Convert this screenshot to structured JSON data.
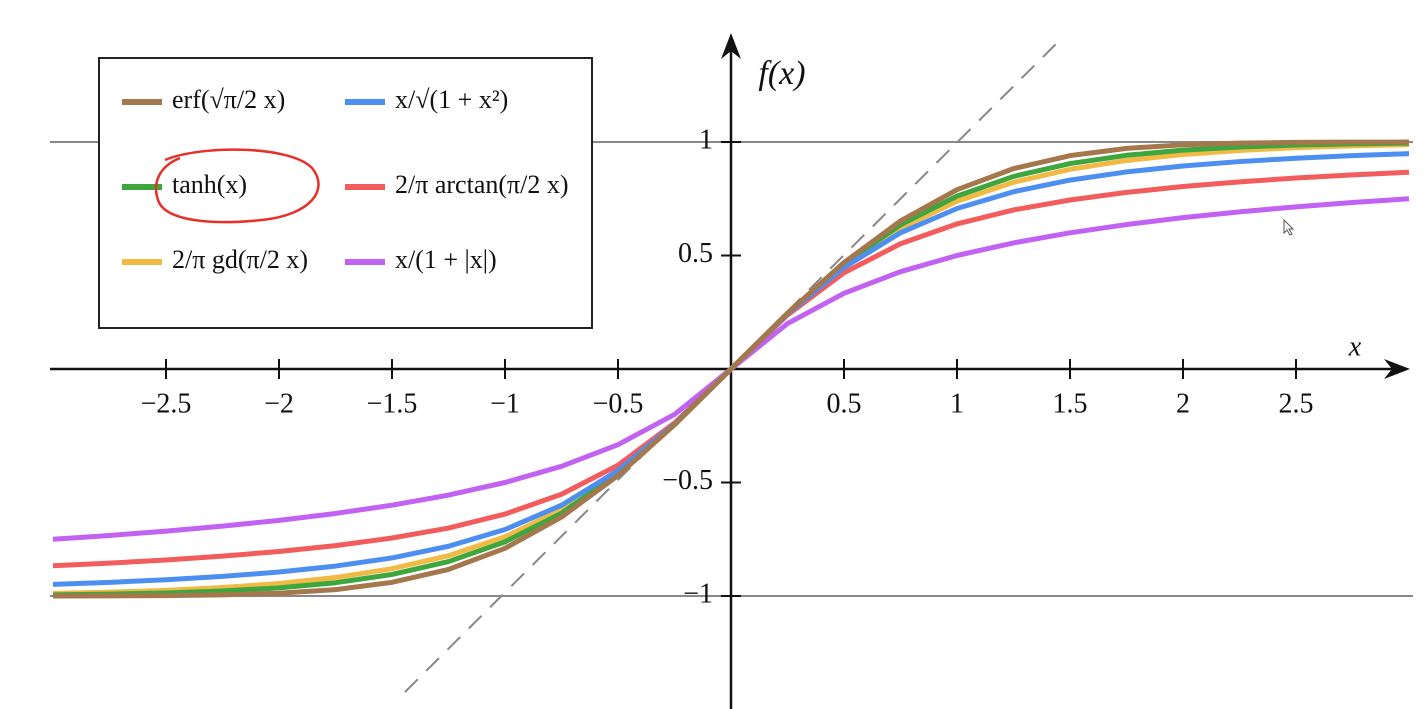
{
  "chart_data": {
    "type": "line",
    "x_label": "x",
    "y_label": "f(x)",
    "x": [
      -3,
      -2.75,
      -2.5,
      -2.25,
      -2,
      -1.75,
      -1.5,
      -1.25,
      -1,
      -0.75,
      -0.5,
      -0.25,
      0,
      0.25,
      0.5,
      0.75,
      1,
      1.25,
      1.5,
      1.75,
      2,
      2.25,
      2.5,
      2.75,
      3
    ],
    "series": [
      {
        "name": "erf(√π/2 x)",
        "color": "#a5774c",
        "values": [
          -0.9998,
          -0.9993,
          -0.9981,
          -0.9949,
          -0.9876,
          -0.9718,
          -0.9399,
          -0.8828,
          -0.79,
          -0.6522,
          -0.469,
          -0.2459,
          0,
          0.2459,
          0.469,
          0.6522,
          0.79,
          0.8828,
          0.9399,
          0.9718,
          0.9876,
          0.9949,
          0.9981,
          0.9993,
          0.9998
        ]
      },
      {
        "name": "x/√(1 + x²)",
        "color": "#4d8ff0",
        "values": [
          -0.9487,
          -0.9398,
          -0.9285,
          -0.9138,
          -0.8944,
          -0.8682,
          -0.8321,
          -0.7809,
          -0.7071,
          -0.6,
          -0.4472,
          -0.2425,
          0,
          0.2425,
          0.4472,
          0.6,
          0.7071,
          0.7809,
          0.8321,
          0.8682,
          0.8944,
          0.9138,
          0.9285,
          0.9398,
          0.9487
        ]
      },
      {
        "name": "tanh(x)",
        "color": "#3ea63e",
        "values": [
          -0.9951,
          -0.9919,
          -0.9866,
          -0.978,
          -0.964,
          -0.9414,
          -0.9051,
          -0.8483,
          -0.7616,
          -0.6351,
          -0.4621,
          -0.2449,
          0,
          0.2449,
          0.4621,
          0.6351,
          0.7616,
          0.8483,
          0.9051,
          0.9414,
          0.964,
          0.978,
          0.9866,
          0.9919,
          0.9951
        ]
      },
      {
        "name": "2/π arctan(π/2 x)",
        "color": "#f25c5c",
        "values": [
          -0.8669,
          -0.8552,
          -0.8412,
          -0.8245,
          -0.8038,
          -0.778,
          -0.7445,
          -0.7006,
          -0.6391,
          -0.5518,
          -0.4239,
          -0.238,
          0,
          0.238,
          0.4239,
          0.5518,
          0.6391,
          0.7006,
          0.7445,
          0.778,
          0.8038,
          0.8245,
          0.8412,
          0.8552,
          0.8669
        ]
      },
      {
        "name": "2/π gd(π/2 x)",
        "color": "#f0ba45",
        "values": [
          -0.9887,
          -0.9831,
          -0.9751,
          -0.9626,
          -0.945,
          -0.9187,
          -0.8798,
          -0.8225,
          -0.7391,
          -0.6197,
          -0.4554,
          -0.2438,
          0,
          0.2438,
          0.4554,
          0.6197,
          0.7391,
          0.8225,
          0.8798,
          0.9187,
          0.945,
          0.9626,
          0.9751,
          0.9831,
          0.9887
        ]
      },
      {
        "name": "x/(1 + |x|)",
        "color": "#c262f2",
        "values": [
          -0.75,
          -0.7333,
          -0.7143,
          -0.6923,
          -0.6667,
          -0.6364,
          -0.6,
          -0.5556,
          -0.5,
          -0.4286,
          -0.3333,
          -0.2,
          0,
          0.2,
          0.3333,
          0.4286,
          0.5,
          0.5556,
          0.6,
          0.6364,
          0.6667,
          0.6923,
          0.7143,
          0.7333,
          0.75
        ]
      }
    ],
    "xlim": [
      -3,
      3
    ],
    "ylim": [
      -1.5,
      1.5
    ],
    "xticks": [
      {
        "value": -2.5,
        "label": "−2.5"
      },
      {
        "value": -2,
        "label": "−2"
      },
      {
        "value": -1.5,
        "label": "−1.5"
      },
      {
        "value": -1,
        "label": "−1"
      },
      {
        "value": -0.5,
        "label": "−0.5"
      },
      0.5,
      1,
      1.5,
      2,
      2.5
    ],
    "yticks": [
      {
        "value": -1,
        "label": "−1"
      },
      {
        "value": -0.5,
        "label": "−0.5"
      },
      0.5,
      1
    ],
    "hlines": [
      -1,
      1
    ]
  }
}
